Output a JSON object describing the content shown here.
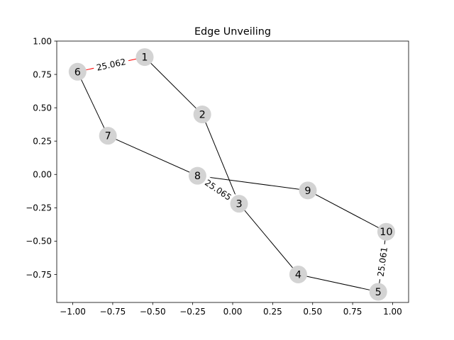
{
  "chart_data": {
    "type": "network",
    "title": "Edge Unveiling",
    "xlabel": "",
    "ylabel": "",
    "xlim": [
      -1.1,
      1.1
    ],
    "ylim": [
      -0.96,
      1.0
    ],
    "x_ticks": [
      {
        "value": -1.0,
        "label": "−1.00"
      },
      {
        "value": -0.75,
        "label": "−0.75"
      },
      {
        "value": -0.5,
        "label": "−0.50"
      },
      {
        "value": -0.25,
        "label": "−0.25"
      },
      {
        "value": 0.0,
        "label": "0.00"
      },
      {
        "value": 0.25,
        "label": "0.25"
      },
      {
        "value": 0.5,
        "label": "0.50"
      },
      {
        "value": 0.75,
        "label": "0.75"
      },
      {
        "value": 1.0,
        "label": "1.00"
      }
    ],
    "y_ticks": [
      {
        "value": 1.0,
        "label": "1.00"
      },
      {
        "value": 0.75,
        "label": "0.75"
      },
      {
        "value": 0.5,
        "label": "0.50"
      },
      {
        "value": 0.25,
        "label": "0.25"
      },
      {
        "value": 0.0,
        "label": "0.00"
      },
      {
        "value": -0.25,
        "label": "−0.25"
      },
      {
        "value": -0.5,
        "label": "−0.50"
      },
      {
        "value": -0.75,
        "label": "−0.75"
      }
    ],
    "grid": false,
    "node_color": "#d3d3d3",
    "nodes": [
      {
        "id": "1",
        "x": -0.55,
        "y": 0.88
      },
      {
        "id": "2",
        "x": -0.19,
        "y": 0.45
      },
      {
        "id": "3",
        "x": 0.04,
        "y": -0.22
      },
      {
        "id": "4",
        "x": 0.41,
        "y": -0.75
      },
      {
        "id": "5",
        "x": 0.91,
        "y": -0.88
      },
      {
        "id": "6",
        "x": -0.97,
        "y": 0.77
      },
      {
        "id": "7",
        "x": -0.78,
        "y": 0.29
      },
      {
        "id": "8",
        "x": -0.22,
        "y": -0.01
      },
      {
        "id": "9",
        "x": 0.47,
        "y": -0.12
      },
      {
        "id": "10",
        "x": 0.96,
        "y": -0.43
      }
    ],
    "edges": [
      {
        "source": "6",
        "target": "1",
        "color": "#ff0000",
        "label": "25.062"
      },
      {
        "source": "1",
        "target": "2",
        "color": "#000000",
        "label": ""
      },
      {
        "source": "2",
        "target": "3",
        "color": "#000000",
        "label": ""
      },
      {
        "source": "3",
        "target": "4",
        "color": "#000000",
        "label": ""
      },
      {
        "source": "4",
        "target": "5",
        "color": "#000000",
        "label": ""
      },
      {
        "source": "5",
        "target": "10",
        "color": "#000000",
        "label": "25.061"
      },
      {
        "source": "10",
        "target": "9",
        "color": "#000000",
        "label": ""
      },
      {
        "source": "9",
        "target": "8",
        "color": "#000000",
        "label": ""
      },
      {
        "source": "8",
        "target": "3",
        "color": "#000000",
        "label": "25.065"
      },
      {
        "source": "8",
        "target": "7",
        "color": "#000000",
        "label": ""
      },
      {
        "source": "7",
        "target": "6",
        "color": "#000000",
        "label": ""
      }
    ]
  }
}
